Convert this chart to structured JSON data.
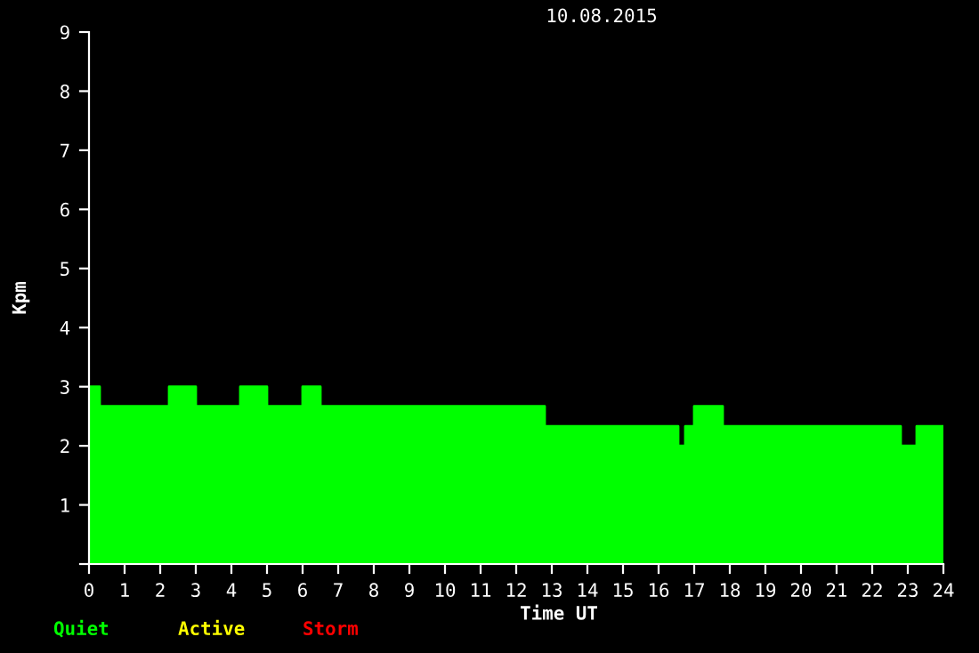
{
  "chart_data": {
    "type": "area",
    "title": "10.08.2015",
    "xlabel": "Time UT",
    "ylabel": "Kpm",
    "x": [
      0,
      0.3,
      0.3,
      2.25,
      2.25,
      3,
      3,
      4.25,
      4.25,
      5,
      5,
      6,
      6,
      6.5,
      6.5,
      12.8,
      12.8,
      16.55,
      16.55,
      16.75,
      16.75,
      17,
      17,
      17.8,
      17.8,
      22.8,
      22.8,
      23.25,
      23.25,
      24
    ],
    "series": [
      {
        "name": "Quiet",
        "color": "#00ff00",
        "values": [
          3,
          3,
          2.67,
          2.67,
          3,
          3,
          2.67,
          2.67,
          3,
          3,
          2.67,
          2.67,
          3,
          3,
          2.67,
          2.67,
          2.33,
          2.33,
          2,
          2,
          2.33,
          2.33,
          2.67,
          2.67,
          2.33,
          2.33,
          2,
          2,
          2.33,
          2.33
        ]
      },
      {
        "name": "Active",
        "color": "#ffff00",
        "values": [
          null,
          null,
          null,
          null,
          null,
          null,
          null,
          null,
          null,
          null,
          null,
          null,
          null,
          null,
          null,
          null,
          null,
          null,
          null,
          null,
          null,
          null,
          null,
          null,
          null,
          null,
          null,
          null,
          null,
          null
        ]
      },
      {
        "name": "Storm",
        "color": "#ff0000",
        "values": [
          null,
          null,
          null,
          null,
          null,
          null,
          null,
          null,
          null,
          null,
          null,
          null,
          null,
          null,
          null,
          null,
          null,
          null,
          null,
          null,
          null,
          null,
          null,
          null,
          null,
          null,
          null,
          null,
          null,
          null
        ]
      }
    ],
    "xlim": [
      0,
      24
    ],
    "xticks": [
      0,
      1,
      2,
      3,
      4,
      5,
      6,
      7,
      8,
      9,
      10,
      11,
      12,
      13,
      14,
      15,
      16,
      17,
      18,
      19,
      20,
      21,
      22,
      23,
      24
    ],
    "ylim": [
      0,
      9
    ],
    "yticks": [
      {
        "value": 0,
        "label": null
      },
      1,
      2,
      3,
      4,
      5,
      6,
      7,
      8,
      9
    ],
    "grid": false
  }
}
